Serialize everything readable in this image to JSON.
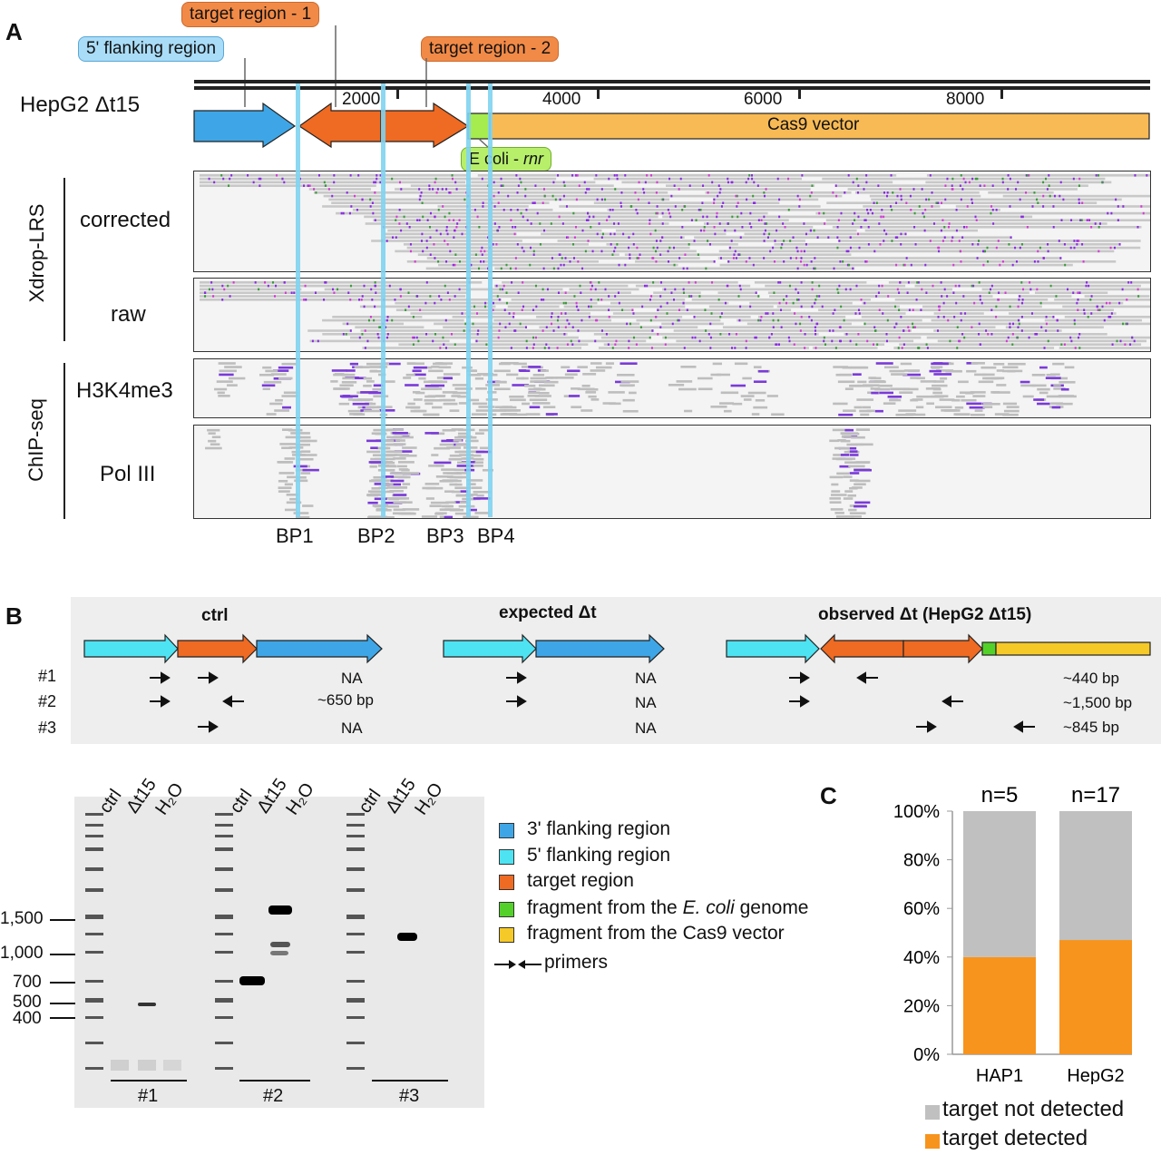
{
  "panel_a": {
    "letter": "A",
    "sample_label": "HepG2 Δt15",
    "callouts": {
      "target1": "target region - 1",
      "flank5": "5' flanking region",
      "target2": "target region - 2",
      "ecoli_prefix": "E coli - ",
      "ecoli_italic": "rnr"
    },
    "axis_ticks": [
      "2000",
      "4000",
      "6000",
      "8000"
    ],
    "vector_label": "Cas9 vector",
    "group_labels": [
      "Xdrop-LRS",
      "ChIP-seq"
    ],
    "track_labels": [
      "corrected",
      "raw",
      "H3K4me3",
      "Pol III"
    ],
    "breakpoints": [
      "BP1",
      "BP2",
      "BP3",
      "BP4"
    ],
    "colors": {
      "flank5_callout": "#a9dcf7",
      "target_callout": "#f28a47",
      "ecoli_callout": "#b7ef6b",
      "flank3": "#3ea6e6",
      "target": "#ef6a22",
      "ecoli": "#a6ec4f",
      "vector": "#f8ba55",
      "bp_line": "#7fd3ef"
    }
  },
  "panel_b": {
    "letter": "B",
    "columns": [
      "ctrl",
      "expected Δt",
      "observed Δt (HepG2 Δt15)"
    ],
    "primer_sets": [
      "#1",
      "#2",
      "#3"
    ],
    "ctrl_products": [
      "NA",
      "~650 bp",
      "NA"
    ],
    "expected_products": [
      "NA",
      "NA",
      "NA"
    ],
    "observed_products": [
      "~440 bp",
      "~1,500 bp",
      "~845 bp"
    ],
    "gel_lane_labels": [
      "ctrl",
      "Δt15",
      "H₂O"
    ],
    "gel_group_labels": [
      "#1",
      "#2",
      "#3"
    ],
    "size_markers": [
      "1,500",
      "1,000",
      "700",
      "500",
      "400"
    ],
    "legend": [
      {
        "text": "3' flanking region",
        "color": "#3ea6e6"
      },
      {
        "text": "5' flanking region",
        "color": "#4ee3f2"
      },
      {
        "text": "target region",
        "color": "#ef6a22"
      },
      {
        "text_prefix": "fragment from the ",
        "text_italic": "E. coli",
        "text_suffix": " genome",
        "color": "#53d12a"
      },
      {
        "text": "fragment from the Cas9 vector",
        "color": "#f5c928"
      }
    ],
    "primers_label": "primers"
  },
  "panel_c": {
    "letter": "C",
    "chart_data": {
      "type": "bar",
      "stacked": true,
      "categories": [
        "HAP1",
        "HepG2"
      ],
      "n_labels": [
        "n=5",
        "n=17"
      ],
      "series": [
        {
          "name": "target detected",
          "values": [
            40,
            47
          ],
          "color": "#f7941d"
        },
        {
          "name": "target not detected",
          "values": [
            60,
            53
          ],
          "color": "#c0c0c0"
        }
      ],
      "yticks": [
        "0%",
        "20%",
        "40%",
        "60%",
        "80%",
        "100%"
      ],
      "ylim": [
        0,
        100
      ],
      "legend": [
        "target not detected",
        "target detected"
      ]
    }
  }
}
